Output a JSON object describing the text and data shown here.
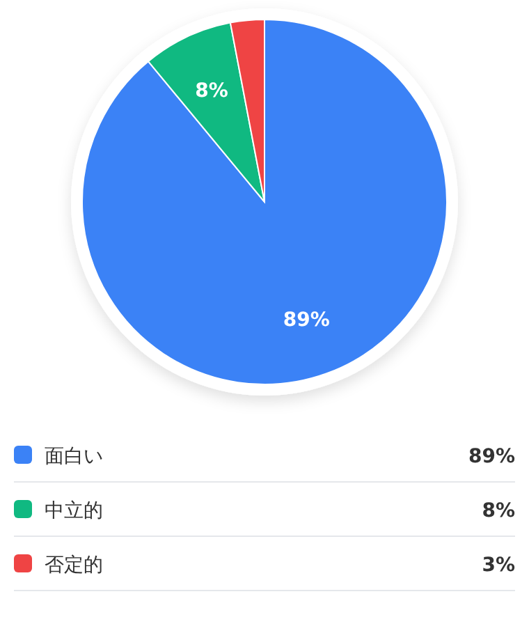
{
  "chart_data": {
    "type": "pie",
    "categories": [
      "面白い",
      "中立的",
      "否定的"
    ],
    "values": [
      89,
      8,
      3
    ],
    "colors": [
      "#3b82f6",
      "#10b981",
      "#ef4444"
    ],
    "value_labels": [
      "89%",
      "8%",
      "3%"
    ],
    "legend": "bottom"
  }
}
